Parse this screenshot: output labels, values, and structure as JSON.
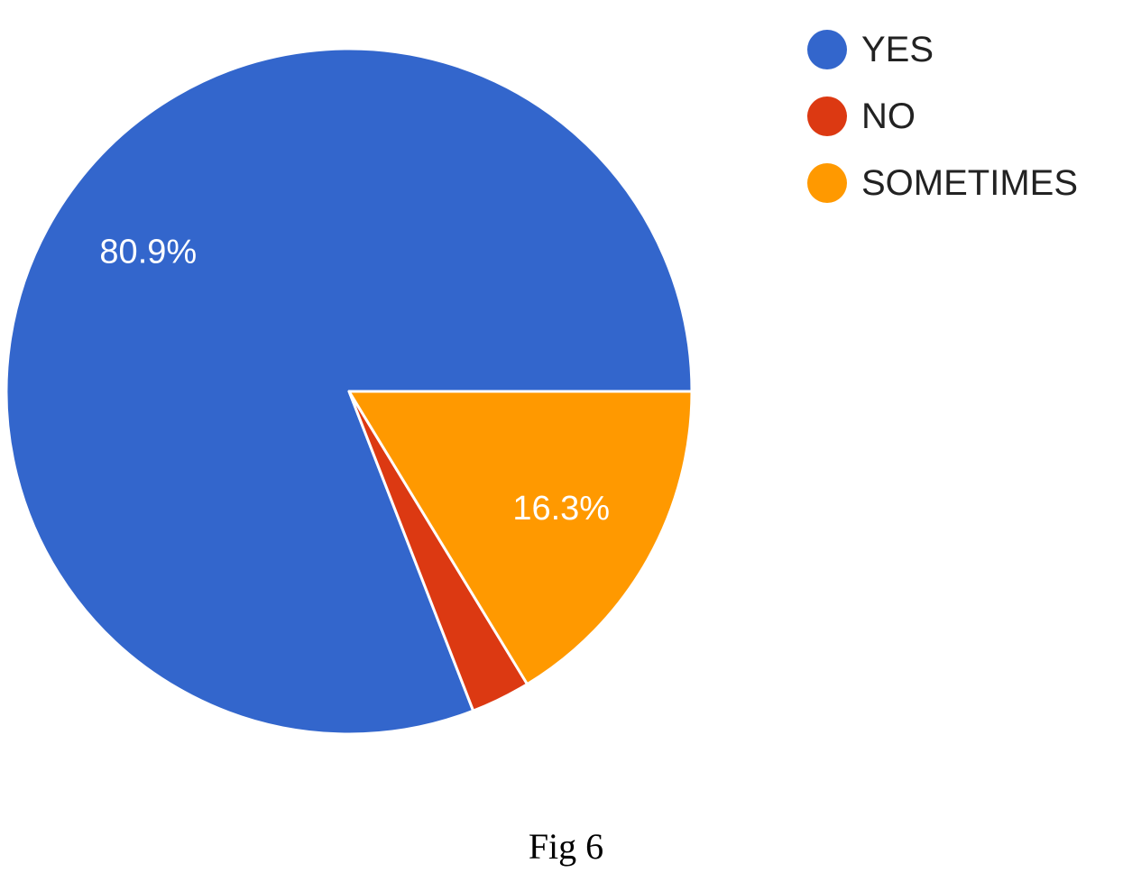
{
  "chart_data": {
    "type": "pie",
    "categories": [
      "YES",
      "NO",
      "SOMETIMES"
    ],
    "values": [
      80.9,
      2.8,
      16.3
    ],
    "data_labels": [
      "80.9%",
      "",
      "16.3%"
    ],
    "colors": [
      "#3366CC",
      "#DC3912",
      "#FF9900"
    ],
    "legend_position": "top-right",
    "start": "east",
    "direction": "counterclockwise"
  },
  "legend": {
    "items": [
      {
        "label": "YES",
        "color": "#3366CC"
      },
      {
        "label": "NO",
        "color": "#DC3912"
      },
      {
        "label": "SOMETIMES",
        "color": "#FF9900"
      }
    ]
  },
  "caption": "Fig 6"
}
